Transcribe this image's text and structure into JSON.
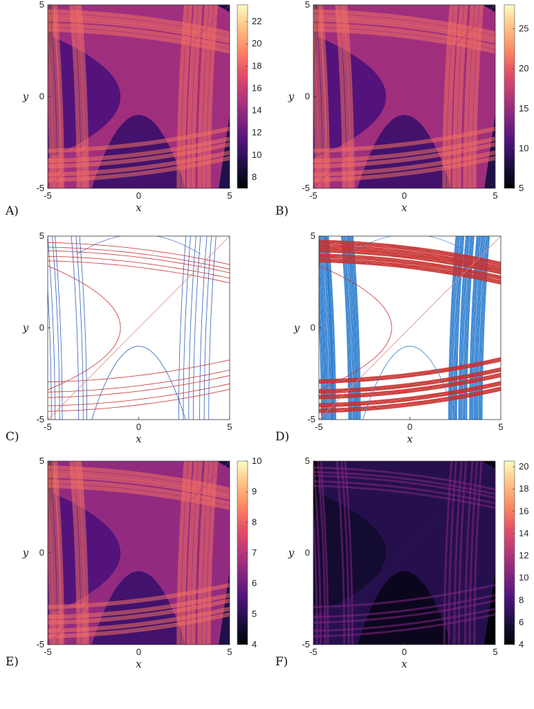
{
  "figure": {
    "panels": [
      {
        "id": "A",
        "label": "A)"
      },
      {
        "id": "B",
        "label": "B)"
      },
      {
        "id": "C",
        "label": "C)"
      },
      {
        "id": "D",
        "label": "D)"
      },
      {
        "id": "E",
        "label": "E)"
      },
      {
        "id": "F",
        "label": "F)"
      }
    ]
  },
  "chart_data": [
    {
      "panel": "A",
      "type": "heatmap",
      "colormap": "magma",
      "xlabel": "x",
      "ylabel": "y",
      "xlim": [
        -5,
        5
      ],
      "ylim": [
        -5,
        5
      ],
      "xticks": [
        "-5",
        "0",
        "5"
      ],
      "yticks": [
        "-5",
        "0",
        "5"
      ],
      "colorbar": {
        "range": [
          7,
          23.5
        ],
        "ticks": [
          "8",
          "10",
          "12",
          "14",
          "16",
          "18",
          "20",
          "22"
        ],
        "tick_values": [
          8,
          10,
          12,
          14,
          16,
          18,
          20,
          22
        ]
      }
    },
    {
      "panel": "B",
      "type": "heatmap",
      "colormap": "magma",
      "xlabel": "x",
      "ylabel": "y",
      "xlim": [
        -5,
        5
      ],
      "ylim": [
        -5,
        5
      ],
      "xticks": [
        "-5",
        "0",
        "5"
      ],
      "yticks": [
        "-5",
        "0",
        "5"
      ],
      "colorbar": {
        "range": [
          5,
          28
        ],
        "ticks": [
          "5",
          "10",
          "15",
          "20",
          "25"
        ],
        "tick_values": [
          5,
          10,
          15,
          20,
          25
        ]
      }
    },
    {
      "panel": "C",
      "type": "line",
      "style": "curve families",
      "xlabel": "x",
      "ylabel": "y",
      "xlim": [
        -5,
        5
      ],
      "ylim": [
        -5,
        5
      ],
      "xticks": [
        "-5",
        "0",
        "5"
      ],
      "yticks": [
        "-5",
        "0",
        "5"
      ],
      "series_colors": {
        "vertical_family": "#2f5fb8",
        "horizontal_family": "#c8302e",
        "diagonal": "#e08a8a"
      },
      "line_width": "thin"
    },
    {
      "panel": "D",
      "type": "line",
      "style": "curve families",
      "xlabel": "x",
      "ylabel": "y",
      "xlim": [
        -5,
        5
      ],
      "ylim": [
        -5,
        5
      ],
      "xticks": [
        "-5",
        "0",
        "5"
      ],
      "yticks": [
        "-5",
        "0",
        "5"
      ],
      "series_colors": {
        "vertical_family": "#2f7fd0",
        "horizontal_family": "#c8302e",
        "diagonal": "#e08a8a"
      },
      "line_width": "thick clustered"
    },
    {
      "panel": "E",
      "type": "heatmap",
      "colormap": "magma",
      "xlabel": "x",
      "ylabel": "y",
      "xlim": [
        -5,
        5
      ],
      "ylim": [
        -5,
        5
      ],
      "xticks": [
        "-5",
        "0",
        "5"
      ],
      "yticks": [
        "-5",
        "0",
        "5"
      ],
      "colorbar": {
        "range": [
          4,
          10
        ],
        "ticks": [
          "4",
          "5",
          "6",
          "7",
          "8",
          "9",
          "10"
        ],
        "tick_values": [
          4,
          5,
          6,
          7,
          8,
          9,
          10
        ]
      }
    },
    {
      "panel": "F",
      "type": "heatmap",
      "colormap": "magma",
      "xlabel": "x",
      "ylabel": "y",
      "xlim": [
        -5,
        5
      ],
      "ylim": [
        -5,
        5
      ],
      "xticks": [
        "-5",
        "0",
        "5"
      ],
      "yticks": [
        "-5",
        "0",
        "5"
      ],
      "colorbar": {
        "range": [
          4,
          20.5
        ],
        "ticks": [
          "4",
          "6",
          "8",
          "10",
          "12",
          "14",
          "16",
          "18",
          "20"
        ],
        "tick_values": [
          4,
          6,
          8,
          10,
          12,
          14,
          16,
          18,
          20
        ]
      }
    }
  ]
}
